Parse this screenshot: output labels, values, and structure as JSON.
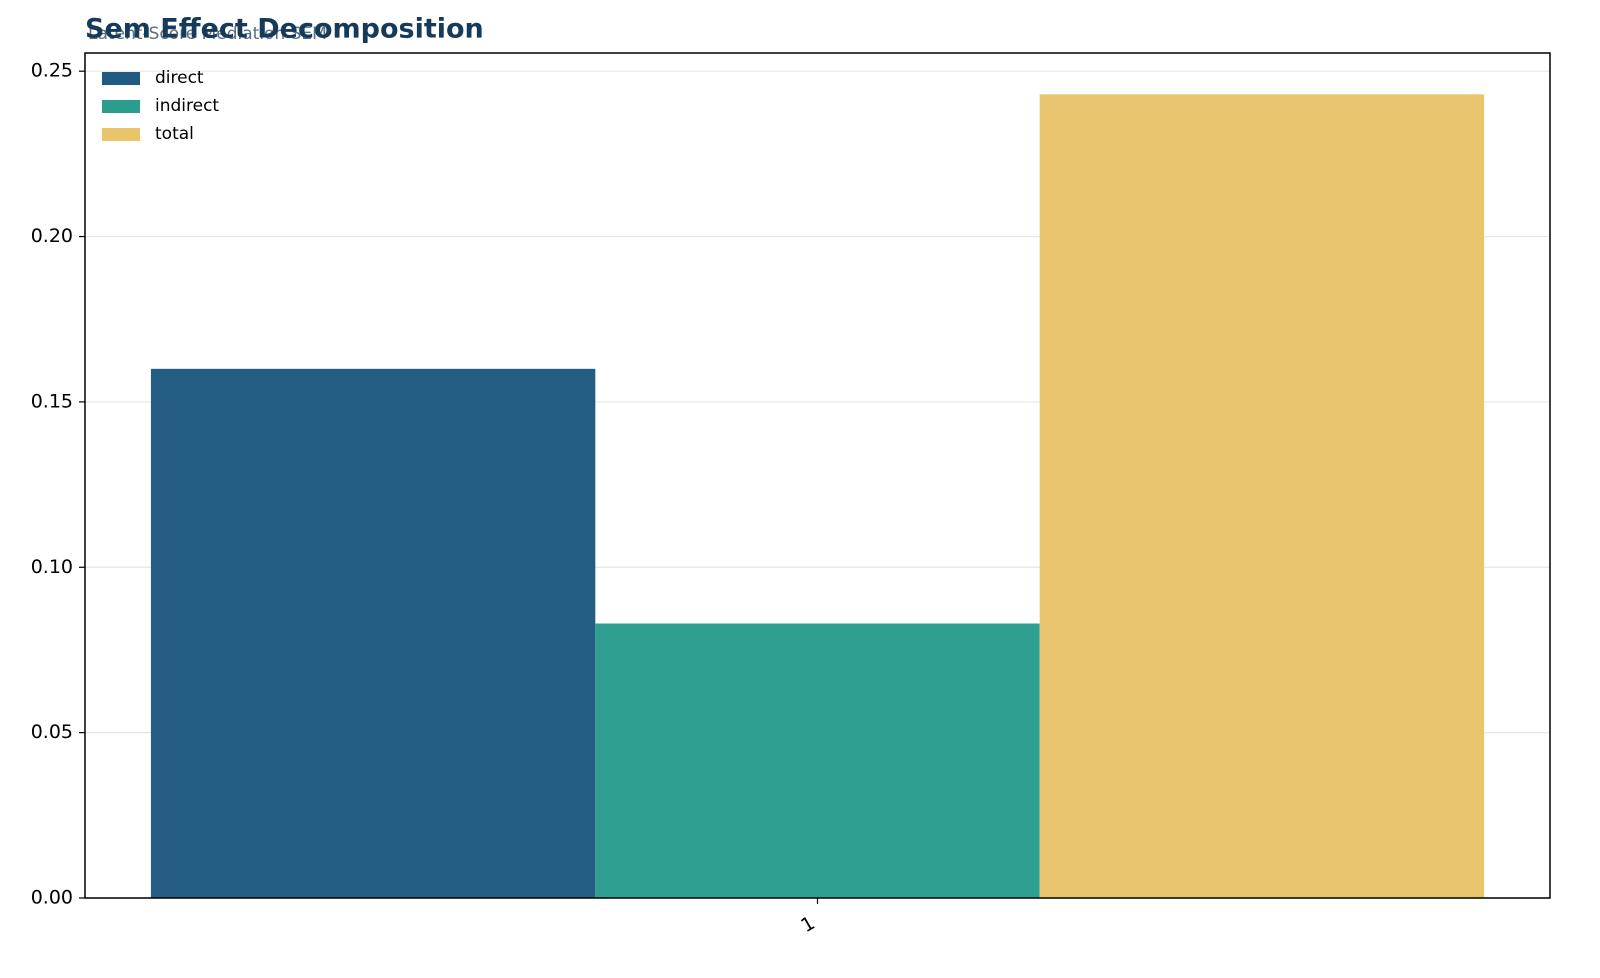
{
  "chart_data": {
    "type": "bar",
    "title": "Sem Effect Decomposition",
    "subtitle": "Latent-Score Mediation SEM",
    "categories": [
      "1"
    ],
    "series": [
      {
        "name": "direct",
        "color": "#1f5a82",
        "values": [
          0.16
        ]
      },
      {
        "name": "indirect",
        "color": "#2a9d8f",
        "values": [
          0.083
        ]
      },
      {
        "name": "total",
        "color": "#e9c46a",
        "values": [
          0.243
        ]
      }
    ],
    "ylim": [
      0,
      0.2555
    ],
    "yticks": [
      {
        "value": 0,
        "label": "0.00"
      },
      0.05,
      {
        "value": 0.1,
        "label": "0.10"
      },
      0.15,
      {
        "value": 0.2,
        "label": "0.20"
      },
      0.25
    ],
    "grid": true,
    "legend": "upper-left"
  }
}
